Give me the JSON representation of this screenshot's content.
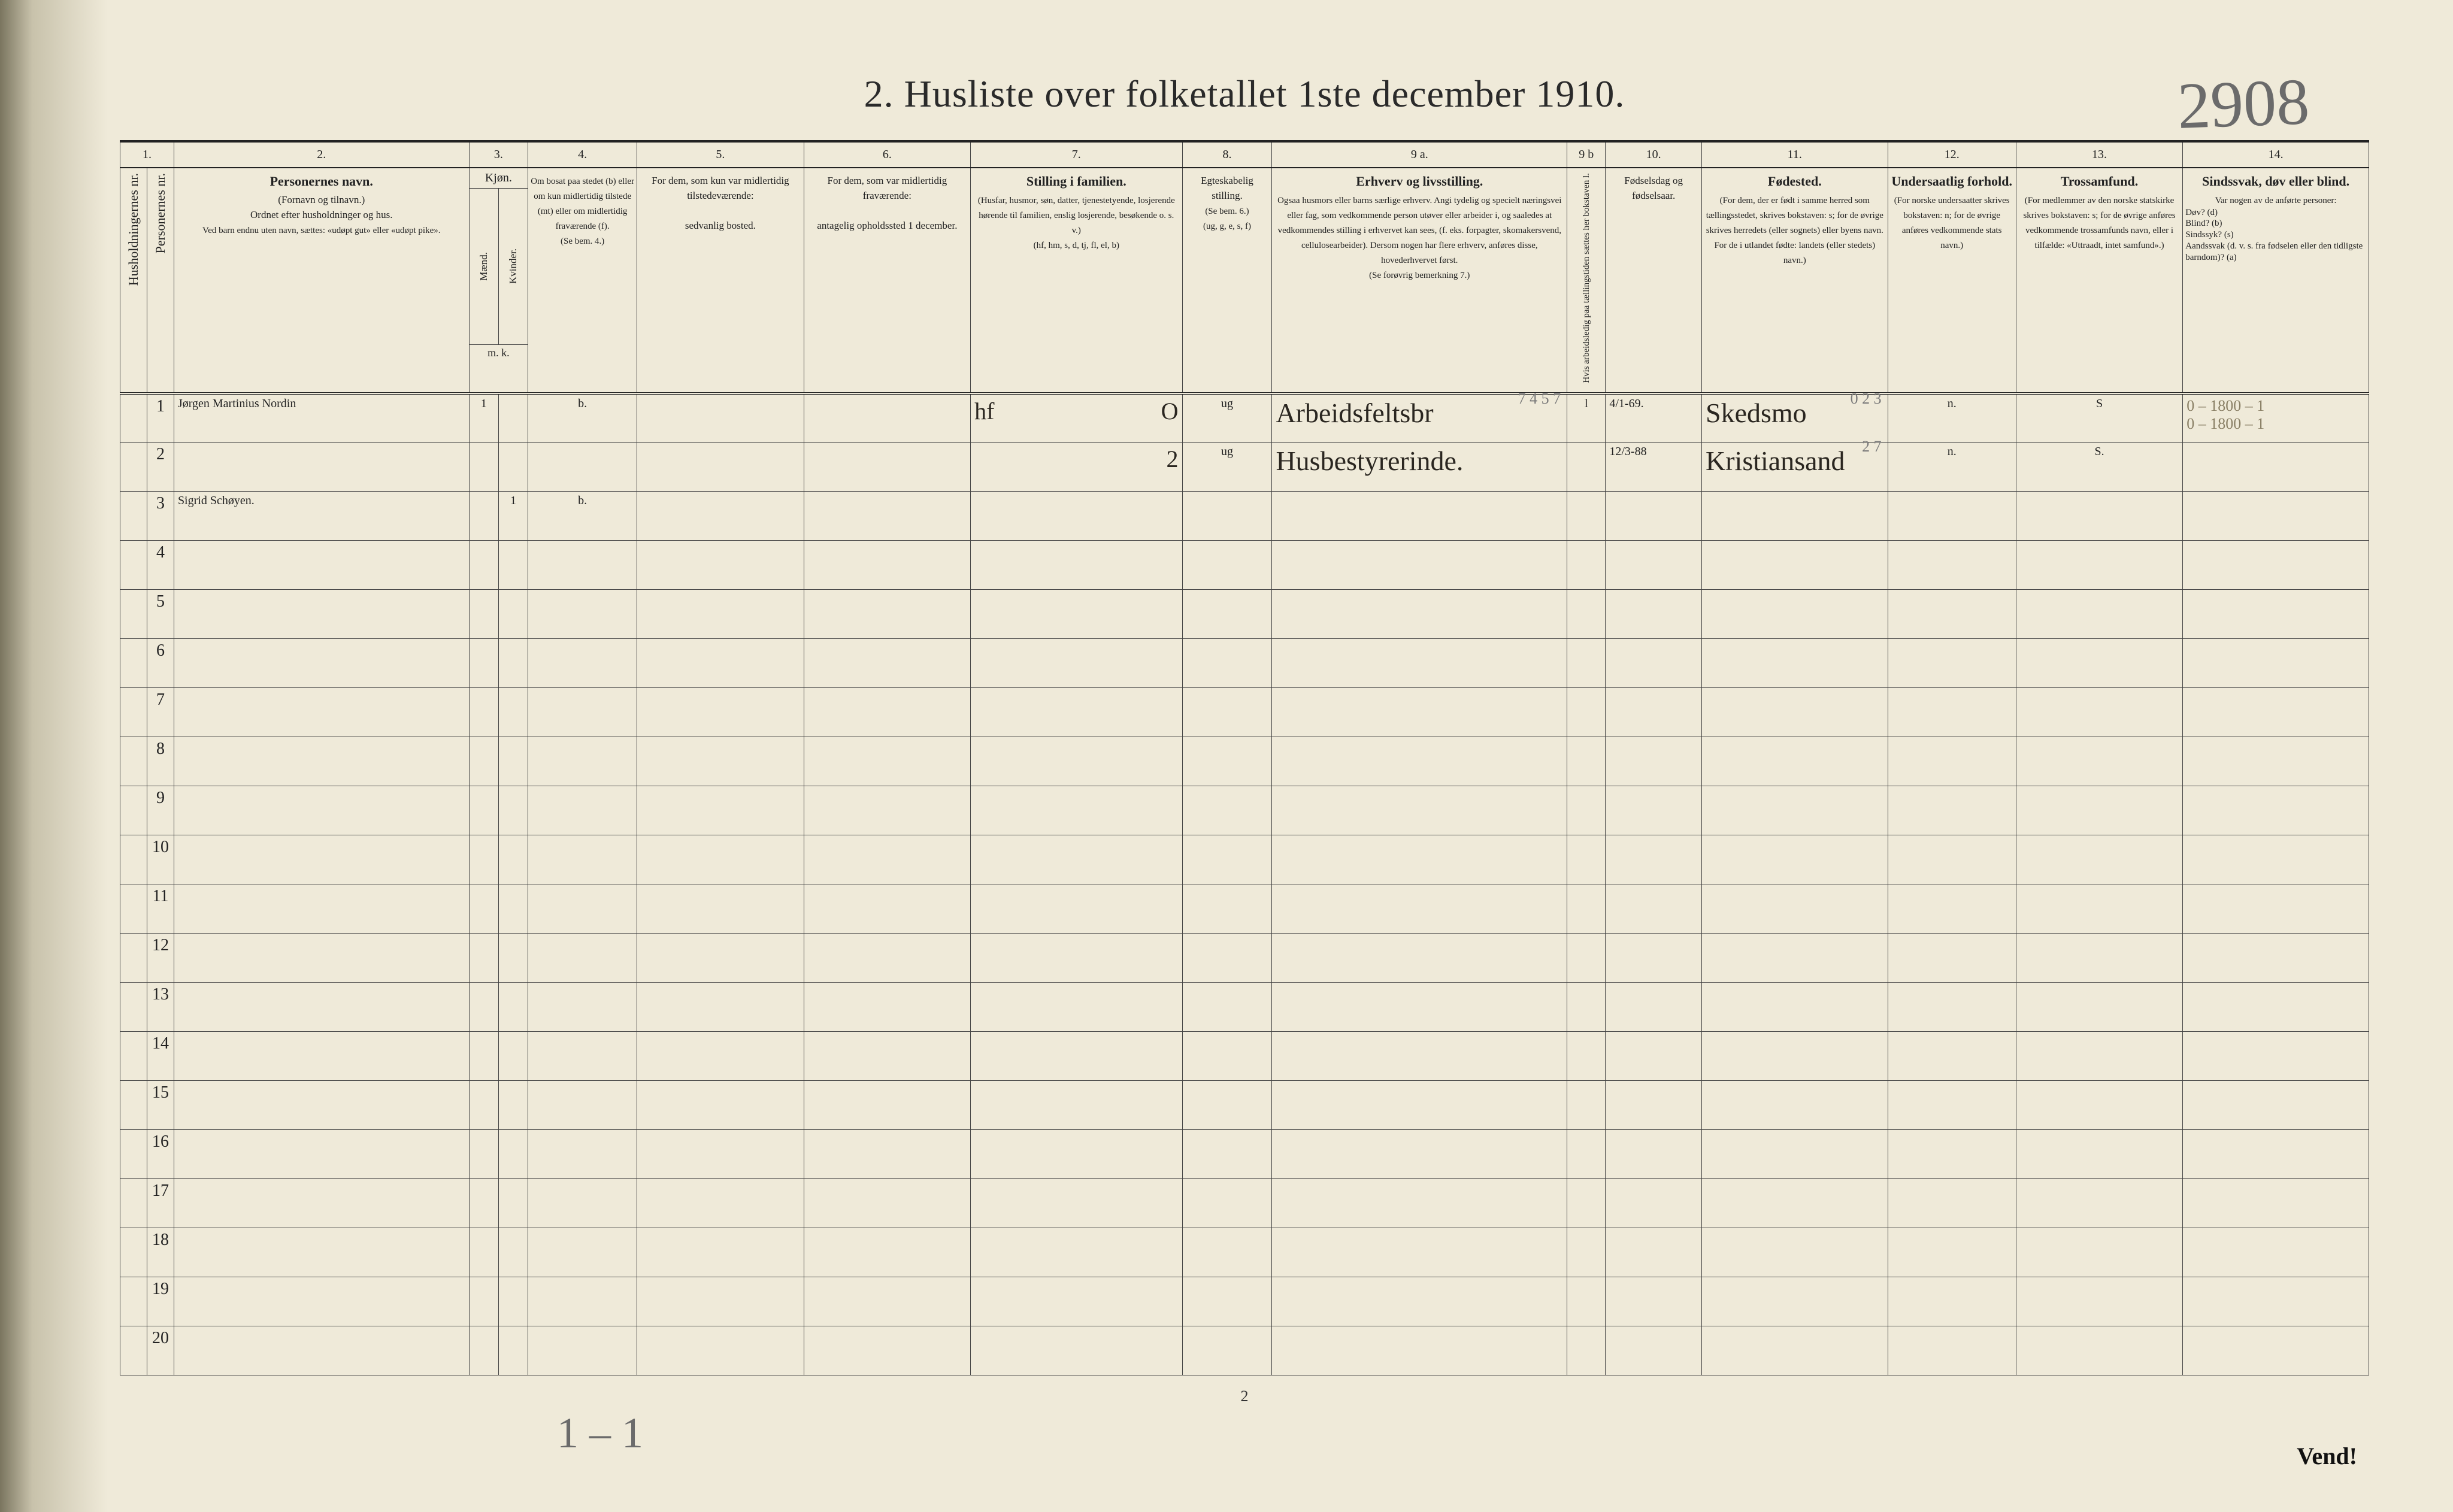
{
  "title": "2.  Husliste over folketallet 1ste december 1910.",
  "handwritten_top_right": "2908",
  "pencil_bottom": "1 – 1",
  "footer_page": "2",
  "vend": "Vend!",
  "columns": {
    "n1": "1.",
    "n2": "2.",
    "n3": "3.",
    "n4": "4.",
    "n5": "5.",
    "n6": "6.",
    "n7": "7.",
    "n8": "8.",
    "n9a": "9 a.",
    "n9b": "9 b",
    "n10": "10.",
    "n11": "11.",
    "n12": "12.",
    "n13": "13.",
    "n14": "14."
  },
  "headers": {
    "c1a": "Husholdningernes nr.",
    "c1b": "Personernes nr.",
    "c2_title": "Personernes navn.",
    "c2_sub1": "(Fornavn og tilnavn.)",
    "c2_sub2": "Ordnet efter husholdninger og hus.",
    "c2_sub3": "Ved barn endnu uten navn, sættes: «udøpt gut» eller «udøpt pike».",
    "c3_title": "Kjøn.",
    "c3_m": "Mænd.",
    "c3_k": "Kvinder.",
    "c3_mk": "m.  k.",
    "c4_l1": "Om bosat paa stedet (b) eller om kun midlertidig tilstede (mt) eller om midlertidig fraværende (f).",
    "c4_l2": "(Se bem. 4.)",
    "c5_l1": "For dem, som kun var midlertidig tilstedeværende:",
    "c5_l2": "sedvanlig bosted.",
    "c6_l1": "For dem, som var midlertidig fraværende:",
    "c6_l2": "antagelig opholdssted 1 december.",
    "c7_title": "Stilling i familien.",
    "c7_sub": "(Husfar, husmor, søn, datter, tjenestetyende, losjerende hørende til familien, enslig losjerende, besøkende o. s. v.)",
    "c7_codes": "(hf, hm, s, d, tj, fl, el, b)",
    "c8_title": "Egteskabelig stilling.",
    "c8_sub": "(Se bem. 6.)",
    "c8_codes": "(ug, g, e, s, f)",
    "c9a_title": "Erhverv og livsstilling.",
    "c9a_sub": "Ogsaa husmors eller barns særlige erhverv. Angi tydelig og specielt næringsvei eller fag, som vedkommende person utøver eller arbeider i, og saaledes at vedkommendes stilling i erhvervet kan sees, (f. eks. forpagter, skomakersvend, cellulosearbeider).  Dersom nogen har flere erhverv, anføres disse, hovederhvervet først.",
    "c9a_see": "(Se forøvrig bemerkning 7.)",
    "c9b": "Hvis arbeidsledig paa tællingstiden sættes her bokstaven l.",
    "c10_title": "Fødselsdag og fødselsaar.",
    "c11_title": "Fødested.",
    "c11_sub": "(For dem, der er født i samme herred som tællingsstedet, skrives bokstaven: s; for de øvrige skrives herredets (eller sognets) eller byens navn. For de i utlandet fødte: landets (eller stedets) navn.)",
    "c12_title": "Undersaatlig forhold.",
    "c12_sub": "(For norske undersaatter skrives bokstaven: n; for de øvrige anføres vedkommende stats navn.)",
    "c13_title": "Trossamfund.",
    "c13_sub": "(For medlemmer av den norske statskirke skrives bokstaven: s; for de øvrige anføres vedkommende trossamfunds navn, eller i tilfælde: «Uttraadt, intet samfund».)",
    "c14_title": "Sindssvak, døv eller blind.",
    "c14_sub": "Var nogen av de anførte personer:",
    "c14_lines": "Døv? (d)\nBlind? (b)\nSindssyk? (s)\nAandssvak (d. v. s. fra fødselen eller den tidligste barndom)? (a)"
  },
  "rows": [
    {
      "hnr": "",
      "pnr": "1",
      "name": "Jørgen Martinius Nordin",
      "m": "1",
      "k": "",
      "bosat": "b.",
      "mt": "",
      "fr": "",
      "stilling": "hf",
      "stilling_extra": "O",
      "egte": "ug",
      "erhverv": "Arbeidsfeltsbr",
      "erhverv_annot": "7 4 5 7",
      "ledig": "l",
      "fdato": "4/1-69.",
      "fsted": "Skedsmo",
      "fsted_annot": "0 2 3",
      "und": "n.",
      "tros": "S",
      "c14": "",
      "pencil_right": "0 – 1800 – 1\n0 – 1800 – 1"
    },
    {
      "hnr": "",
      "pnr": "2",
      "name": "",
      "m": "",
      "k": "",
      "bosat": "",
      "mt": "",
      "fr": "",
      "stilling": "",
      "stilling_extra": "2",
      "egte": "ug",
      "erhverv": "Husbestyrerinde.",
      "erhverv_annot": "",
      "ledig": "",
      "fdato": "12/3-88",
      "fsted": "Kristiansand",
      "fsted_annot": "2 7",
      "und": "n.",
      "tros": "S.",
      "c14": "",
      "pencil_right": ""
    },
    {
      "hnr": "",
      "pnr": "3",
      "name": "Sigrid Schøyen.",
      "m": "",
      "k": "1",
      "bosat": "b.",
      "mt": "",
      "fr": "",
      "stilling": "",
      "stilling_extra": "",
      "egte": "",
      "erhverv": "",
      "erhverv_annot": "",
      "ledig": "",
      "fdato": "",
      "fsted": "",
      "fsted_annot": "",
      "und": "",
      "tros": "",
      "c14": "",
      "pencil_right": ""
    }
  ],
  "blank_row_numbers": [
    "4",
    "5",
    "6",
    "7",
    "8",
    "9",
    "10",
    "11",
    "12",
    "13",
    "14",
    "15",
    "16",
    "17",
    "18",
    "19",
    "20"
  ]
}
